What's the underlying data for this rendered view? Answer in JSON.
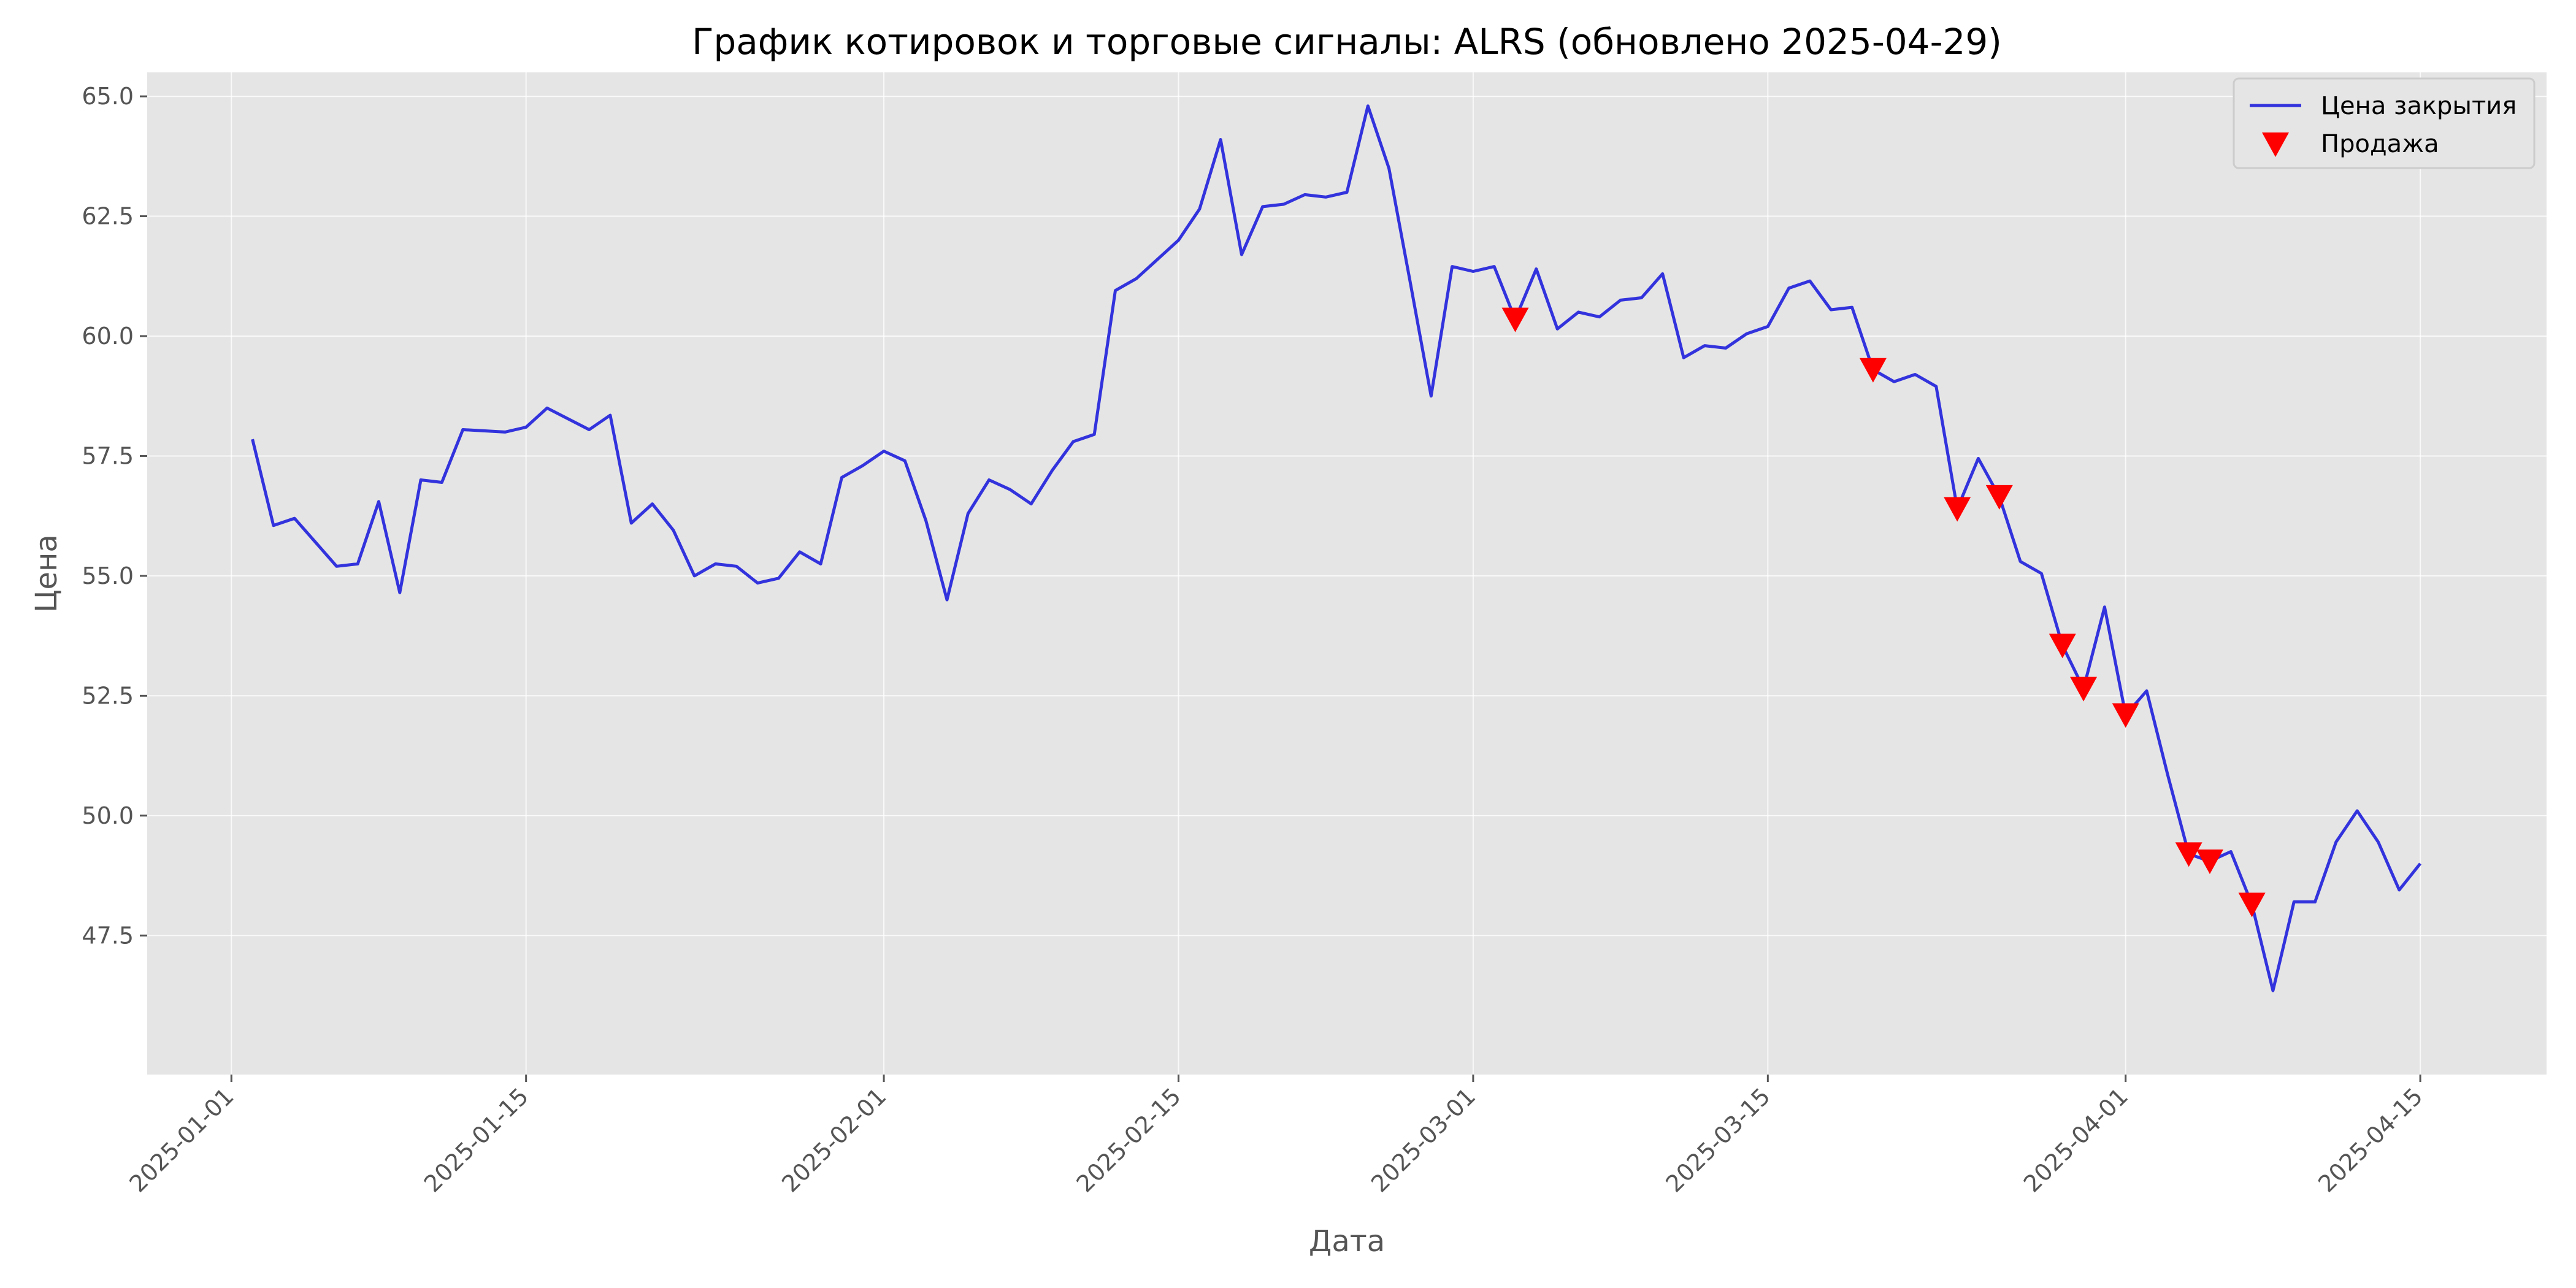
{
  "chart_data": {
    "type": "line",
    "title": "График котировок и торговые сигналы: ALRS (обновлено 2025-04-29)",
    "xlabel": "Дата",
    "ylabel": "Цена",
    "xlim": [
      "2024-12-28",
      "2025-04-21"
    ],
    "ylim": [
      44.6,
      65.5
    ],
    "yticks": [
      47.5,
      50.0,
      52.5,
      55.0,
      57.5,
      60.0,
      62.5,
      65.0
    ],
    "ytick_labels": [
      "47.5",
      "50.0",
      "52.5",
      "55.0",
      "57.5",
      "60.0",
      "62.5",
      "65.0"
    ],
    "xticks": [
      "2025-01-01",
      "2025-01-15",
      "2025-02-01",
      "2025-02-15",
      "2025-03-01",
      "2025-03-15",
      "2025-04-01",
      "2025-04-15"
    ],
    "grid": true,
    "legend": "top-right",
    "background": "#e5e5e5",
    "series": [
      {
        "name": "Цена закрытия",
        "kind": "line",
        "color": "#3333dd",
        "points": [
          [
            "2025-01-02",
            57.85
          ],
          [
            "2025-01-03",
            56.05
          ],
          [
            "2025-01-04",
            56.2
          ],
          [
            "2025-01-05",
            55.7
          ],
          [
            "2025-01-06",
            55.2
          ],
          [
            "2025-01-07",
            55.25
          ],
          [
            "2025-01-08",
            56.55
          ],
          [
            "2025-01-09",
            54.65
          ],
          [
            "2025-01-10",
            57.0
          ],
          [
            "2025-01-11",
            56.95
          ],
          [
            "2025-01-12",
            58.05
          ],
          [
            "2025-01-14",
            58.0
          ],
          [
            "2025-01-15",
            58.1
          ],
          [
            "2025-01-16",
            58.5
          ],
          [
            "2025-01-18",
            58.05
          ],
          [
            "2025-01-19",
            58.35
          ],
          [
            "2025-01-20",
            56.1
          ],
          [
            "2025-01-21",
            56.5
          ],
          [
            "2025-01-22",
            55.95
          ],
          [
            "2025-01-23",
            55.0
          ],
          [
            "2025-01-24",
            55.25
          ],
          [
            "2025-01-25",
            55.2
          ],
          [
            "2025-01-26",
            54.85
          ],
          [
            "2025-01-27",
            54.95
          ],
          [
            "2025-01-28",
            55.5
          ],
          [
            "2025-01-29",
            55.25
          ],
          [
            "2025-01-30",
            57.05
          ],
          [
            "2025-01-31",
            57.3
          ],
          [
            "2025-02-01",
            57.6
          ],
          [
            "2025-02-02",
            57.4
          ],
          [
            "2025-02-03",
            56.15
          ],
          [
            "2025-02-04",
            54.5
          ],
          [
            "2025-02-05",
            56.3
          ],
          [
            "2025-02-06",
            57.0
          ],
          [
            "2025-02-07",
            56.8
          ],
          [
            "2025-02-08",
            56.5
          ],
          [
            "2025-02-09",
            57.2
          ],
          [
            "2025-02-10",
            57.8
          ],
          [
            "2025-02-11",
            57.95
          ],
          [
            "2025-02-12",
            60.95
          ],
          [
            "2025-02-13",
            61.2
          ],
          [
            "2025-02-14",
            61.6
          ],
          [
            "2025-02-15",
            62.0
          ],
          [
            "2025-02-16",
            62.65
          ],
          [
            "2025-02-17",
            64.1
          ],
          [
            "2025-02-18",
            61.7
          ],
          [
            "2025-02-19",
            62.7
          ],
          [
            "2025-02-20",
            62.75
          ],
          [
            "2025-02-21",
            62.95
          ],
          [
            "2025-02-22",
            62.9
          ],
          [
            "2025-02-23",
            63.0
          ],
          [
            "2025-02-24",
            64.8
          ],
          [
            "2025-02-25",
            63.5
          ],
          [
            "2025-02-26",
            61.15
          ],
          [
            "2025-02-27",
            58.75
          ],
          [
            "2025-02-28",
            61.45
          ],
          [
            "2025-03-01",
            61.35
          ],
          [
            "2025-03-02",
            61.45
          ],
          [
            "2025-03-03",
            60.35
          ],
          [
            "2025-03-04",
            61.4
          ],
          [
            "2025-03-05",
            60.15
          ],
          [
            "2025-03-06",
            60.5
          ],
          [
            "2025-03-07",
            60.4
          ],
          [
            "2025-03-08",
            60.75
          ],
          [
            "2025-03-09",
            60.8
          ],
          [
            "2025-03-10",
            61.3
          ],
          [
            "2025-03-11",
            59.55
          ],
          [
            "2025-03-12",
            59.8
          ],
          [
            "2025-03-13",
            59.75
          ],
          [
            "2025-03-14",
            60.05
          ],
          [
            "2025-03-15",
            60.2
          ],
          [
            "2025-03-16",
            61.0
          ],
          [
            "2025-03-17",
            61.15
          ],
          [
            "2025-03-18",
            60.55
          ],
          [
            "2025-03-19",
            60.6
          ],
          [
            "2025-03-20",
            59.3
          ],
          [
            "2025-03-21",
            59.05
          ],
          [
            "2025-03-22",
            59.2
          ],
          [
            "2025-03-23",
            58.95
          ],
          [
            "2025-03-24",
            56.4
          ],
          [
            "2025-03-25",
            57.45
          ],
          [
            "2025-03-26",
            56.65
          ],
          [
            "2025-03-27",
            55.3
          ],
          [
            "2025-03-28",
            55.05
          ],
          [
            "2025-03-29",
            53.55
          ],
          [
            "2025-03-30",
            52.65
          ],
          [
            "2025-03-31",
            54.35
          ],
          [
            "2025-04-01",
            52.1
          ],
          [
            "2025-04-02",
            52.6
          ],
          [
            "2025-04-03",
            50.85
          ],
          [
            "2025-04-04",
            49.2
          ],
          [
            "2025-04-05",
            49.05
          ],
          [
            "2025-04-06",
            49.25
          ],
          [
            "2025-04-07",
            48.15
          ],
          [
            "2025-04-08",
            46.35
          ],
          [
            "2025-04-09",
            48.2
          ],
          [
            "2025-04-10",
            48.2
          ],
          [
            "2025-04-11",
            49.45
          ],
          [
            "2025-04-12",
            50.1
          ],
          [
            "2025-04-13",
            49.45
          ],
          [
            "2025-04-14",
            48.45
          ],
          [
            "2025-04-15",
            49.0
          ]
        ]
      },
      {
        "name": "Продажа",
        "kind": "scatter",
        "marker": "triangle-down",
        "color": "#ff0000",
        "points": [
          [
            "2025-03-03",
            60.35
          ],
          [
            "2025-03-20",
            59.3
          ],
          [
            "2025-03-24",
            56.4
          ],
          [
            "2025-03-26",
            56.65
          ],
          [
            "2025-03-29",
            53.55
          ],
          [
            "2025-03-30",
            52.65
          ],
          [
            "2025-04-01",
            52.1
          ],
          [
            "2025-04-04",
            49.2
          ],
          [
            "2025-04-05",
            49.05
          ],
          [
            "2025-04-07",
            48.15
          ]
        ]
      }
    ]
  }
}
